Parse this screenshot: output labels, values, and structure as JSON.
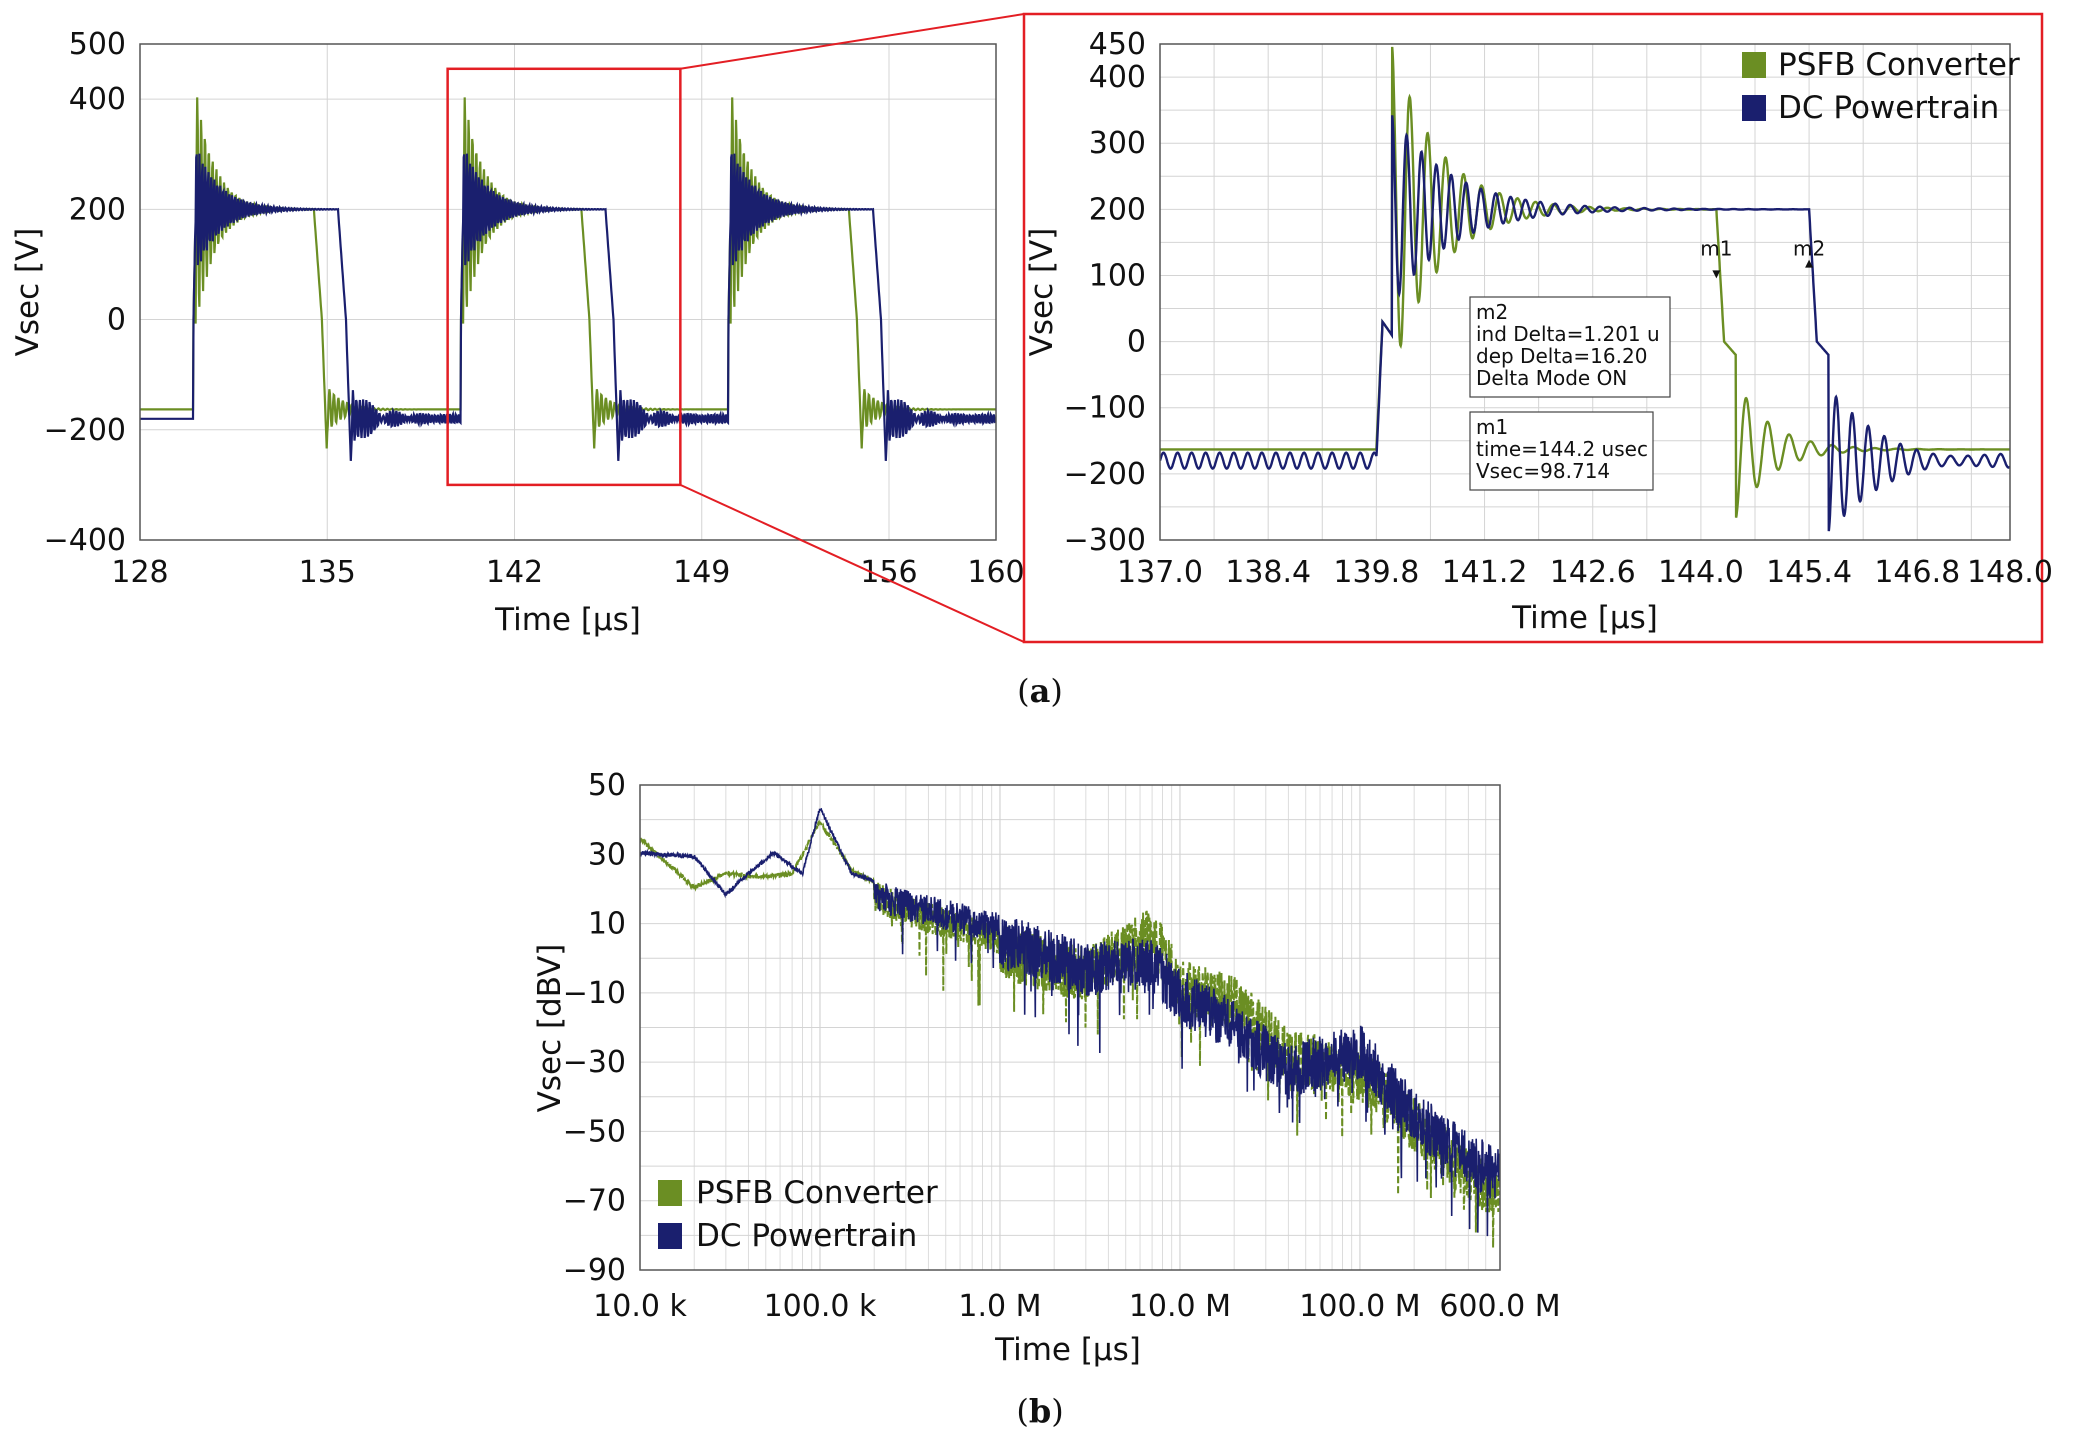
{
  "colors": {
    "psfb": "#6b8e23",
    "dc": "#1a1f6e",
    "zoom": "#e31e24",
    "grid": "#d4d4d4"
  },
  "chart_data": [
    {
      "id": "a-left",
      "type": "line",
      "xlabel": "Time [μs]",
      "ylabel": "Vsec [V]",
      "xlim": [
        128,
        160
      ],
      "ylim": [
        -400,
        500
      ],
      "xticks": [
        128,
        135,
        142,
        149,
        156,
        160
      ],
      "xtick_labels": [
        "128",
        "135",
        "142",
        "149",
        "156",
        "160"
      ],
      "yticks": [
        -400,
        -200,
        0,
        200,
        400,
        500
      ],
      "ytick_labels": [
        "−400",
        "−200",
        "0",
        "200",
        "400",
        "500"
      ],
      "grid": true,
      "series": [
        {
          "name": "PSFB Converter",
          "color_key": "psfb",
          "period": 10,
          "rise": [
            130.0,
            140.0,
            150.0
          ],
          "fall": [
            134.5,
            144.5,
            154.5
          ],
          "high": 200,
          "low": -163,
          "peak": 450,
          "trough": -260
        },
        {
          "name": "DC Powertrain",
          "color_key": "dc",
          "period": 10,
          "rise": [
            130.0,
            140.0,
            150.0
          ],
          "fall": [
            135.4,
            145.4,
            155.4
          ],
          "high": 200,
          "low": -180,
          "peak": 330,
          "trough": -285
        }
      ],
      "zoom_box": {
        "x": [
          139.5,
          148.2
        ],
        "y": [
          -300,
          455
        ]
      }
    },
    {
      "id": "a-right",
      "type": "line",
      "xlabel": "Time [μs]",
      "ylabel": "Vsec [V]",
      "xlim": [
        137.0,
        148.0
      ],
      "ylim": [
        -300,
        450
      ],
      "xticks": [
        137.0,
        138.4,
        139.8,
        141.2,
        142.6,
        144.0,
        145.4,
        146.8,
        148.0
      ],
      "xtick_labels": [
        "137.0",
        "138.4",
        "139.8",
        "141.2",
        "142.6",
        "144.0",
        "145.4",
        "146.8",
        "148.0"
      ],
      "yticks": [
        -300,
        -200,
        -100,
        0,
        100,
        200,
        300,
        400,
        450
      ],
      "ytick_labels": [
        "−300",
        "−200",
        "−100",
        "0",
        "100",
        "200",
        "300",
        "400",
        "450"
      ],
      "grid": true,
      "legend": {
        "position": "top-right",
        "items": [
          "PSFB Converter",
          "DC Powertrain"
        ]
      },
      "series": [
        {
          "name": "PSFB Converter",
          "color_key": "psfb",
          "rise": 139.8,
          "fall": 144.2,
          "high": 200,
          "low": -163,
          "peak": 450,
          "trough": -268
        },
        {
          "name": "DC Powertrain",
          "color_key": "dc",
          "rise": 139.8,
          "fall": 145.4,
          "high": 200,
          "low": -180,
          "peak": 345,
          "trough": -290
        }
      ],
      "markers": [
        {
          "label": "m1",
          "x": 144.2,
          "y": 98.714
        },
        {
          "label": "m2",
          "x": 145.4,
          "y": 114.9
        }
      ],
      "annotations": {
        "m2": [
          "m2",
          "ind Delta=1.201 u",
          "dep Delta=16.20",
          "Delta Mode ON"
        ],
        "m1": [
          "m1",
          "time=144.2 usec",
          "Vsec=98.714"
        ]
      }
    },
    {
      "id": "b",
      "type": "line",
      "xscale": "log",
      "xlabel": "Time [μs]",
      "ylabel": "Vsec  [dBV]",
      "xlim": [
        10000,
        600000000
      ],
      "ylim": [
        -90,
        50
      ],
      "xticks": [
        10000,
        100000,
        1000000,
        10000000,
        100000000,
        600000000
      ],
      "xtick_labels": [
        "10.0 k",
        "100.0 k",
        "1.0 M",
        "10.0 M",
        "100.0 M",
        "600.0 M"
      ],
      "yticks": [
        -90,
        -70,
        -50,
        -30,
        -10,
        10,
        30,
        50
      ],
      "ytick_labels": [
        "−90",
        "−70",
        "−50",
        "−30",
        "−10",
        "10",
        "30",
        "50"
      ],
      "grid": true,
      "legend": {
        "position": "bottom-left",
        "items": [
          "PSFB Converter",
          "DC Powertrain"
        ]
      },
      "series": [
        {
          "name": "PSFB Converter",
          "color_key": "psfb",
          "style": "dashed",
          "envelope": [
            [
              10000,
              35
            ],
            [
              20000,
              21
            ],
            [
              30000,
              25
            ],
            [
              45000,
              24
            ],
            [
              70000,
              25
            ],
            [
              100000,
              40
            ],
            [
              150000,
              26
            ],
            [
              300000,
              18
            ],
            [
              1000000,
              10
            ],
            [
              3000000,
              3
            ],
            [
              7000000,
              15
            ],
            [
              10000000,
              0
            ],
            [
              20000000,
              -5
            ],
            [
              40000000,
              -20
            ],
            [
              100000000,
              -25
            ],
            [
              200000000,
              -40
            ],
            [
              400000000,
              -55
            ],
            [
              600000000,
              -60
            ]
          ]
        },
        {
          "name": "DC Powertrain",
          "color_key": "dc",
          "style": "solid",
          "envelope": [
            [
              10000,
              31
            ],
            [
              20000,
              30
            ],
            [
              30000,
              19
            ],
            [
              40000,
              25
            ],
            [
              55000,
              31
            ],
            [
              80000,
              25
            ],
            [
              100000,
              44
            ],
            [
              150000,
              25
            ],
            [
              300000,
              20
            ],
            [
              1000000,
              13
            ],
            [
              3000000,
              5
            ],
            [
              7000000,
              6
            ],
            [
              10000000,
              -3
            ],
            [
              20000000,
              -12
            ],
            [
              40000000,
              -25
            ],
            [
              100000000,
              -19
            ],
            [
              200000000,
              -38
            ],
            [
              400000000,
              -50
            ],
            [
              600000000,
              -55
            ]
          ]
        }
      ]
    }
  ],
  "captions": {
    "a": "(a)",
    "b": "(b)",
    "a_letter": "a",
    "b_letter": "b"
  }
}
